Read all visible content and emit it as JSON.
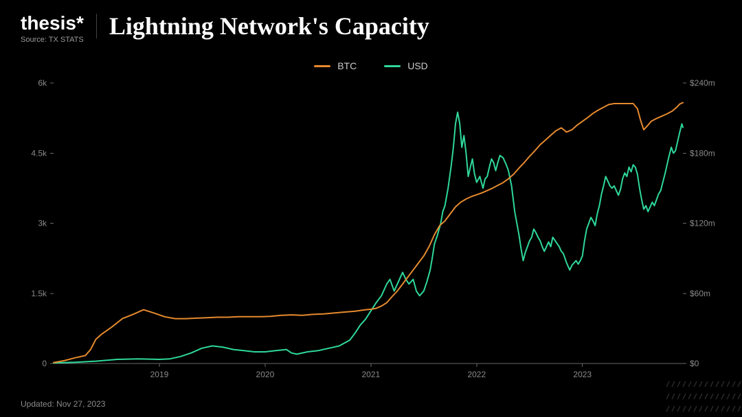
{
  "brand": {
    "logo_text": "thesis",
    "logo_star": "*",
    "source_label": "Source: TX STATS"
  },
  "title": "Lightning Network's Capacity",
  "updated_label": "Updated: Nov 27, 2023",
  "legend": {
    "btc": {
      "label": "BTC",
      "color": "#e68a2e"
    },
    "usd": {
      "label": "USD",
      "color": "#2fd89a"
    }
  },
  "chart": {
    "type": "dual-axis-line",
    "background_color": "#000000",
    "axis_color": "#6a6a6a",
    "tick_font_color": "#8a8a8a",
    "tick_fontsize": 12,
    "line_width": 2,
    "x": {
      "min": 2018.0,
      "max": 2023.95,
      "ticks": [
        2019,
        2020,
        2021,
        2022,
        2023
      ],
      "tick_labels": [
        "2019",
        "2020",
        "2021",
        "2022",
        "2023"
      ]
    },
    "y_left": {
      "min": 0,
      "max": 6000,
      "ticks": [
        0,
        1500,
        3000,
        4500,
        6000
      ],
      "tick_labels": [
        "0",
        "1.5k",
        "3k",
        "4.5k",
        "6k"
      ]
    },
    "y_right": {
      "min": 0,
      "max": 240,
      "ticks": [
        0,
        60,
        120,
        180,
        240
      ],
      "tick_labels": [
        "$0",
        "$60m",
        "$120m",
        "$180m",
        "$240m"
      ]
    },
    "series": {
      "btc": {
        "axis": "left",
        "color": "#e68a2e",
        "points": [
          [
            2018.0,
            20
          ],
          [
            2018.1,
            60
          ],
          [
            2018.2,
            120
          ],
          [
            2018.3,
            170
          ],
          [
            2018.35,
            300
          ],
          [
            2018.4,
            520
          ],
          [
            2018.45,
            620
          ],
          [
            2018.55,
            780
          ],
          [
            2018.65,
            960
          ],
          [
            2018.75,
            1050
          ],
          [
            2018.85,
            1150
          ],
          [
            2018.95,
            1080
          ],
          [
            2019.05,
            1000
          ],
          [
            2019.15,
            960
          ],
          [
            2019.25,
            960
          ],
          [
            2019.35,
            970
          ],
          [
            2019.45,
            980
          ],
          [
            2019.55,
            990
          ],
          [
            2019.65,
            990
          ],
          [
            2019.75,
            1000
          ],
          [
            2019.85,
            1000
          ],
          [
            2019.95,
            1000
          ],
          [
            2020.05,
            1010
          ],
          [
            2020.15,
            1030
          ],
          [
            2020.25,
            1040
          ],
          [
            2020.35,
            1030
          ],
          [
            2020.45,
            1050
          ],
          [
            2020.55,
            1060
          ],
          [
            2020.65,
            1080
          ],
          [
            2020.75,
            1100
          ],
          [
            2020.85,
            1120
          ],
          [
            2020.95,
            1150
          ],
          [
            2021.0,
            1160
          ],
          [
            2021.05,
            1180
          ],
          [
            2021.1,
            1230
          ],
          [
            2021.15,
            1300
          ],
          [
            2021.2,
            1430
          ],
          [
            2021.25,
            1550
          ],
          [
            2021.3,
            1700
          ],
          [
            2021.35,
            1850
          ],
          [
            2021.4,
            2000
          ],
          [
            2021.45,
            2150
          ],
          [
            2021.5,
            2300
          ],
          [
            2021.55,
            2500
          ],
          [
            2021.6,
            2750
          ],
          [
            2021.65,
            2950
          ],
          [
            2021.7,
            3050
          ],
          [
            2021.75,
            3200
          ],
          [
            2021.8,
            3350
          ],
          [
            2021.85,
            3450
          ],
          [
            2021.9,
            3520
          ],
          [
            2021.95,
            3570
          ],
          [
            2022.0,
            3610
          ],
          [
            2022.05,
            3650
          ],
          [
            2022.1,
            3700
          ],
          [
            2022.15,
            3750
          ],
          [
            2022.2,
            3810
          ],
          [
            2022.25,
            3870
          ],
          [
            2022.3,
            3950
          ],
          [
            2022.35,
            4050
          ],
          [
            2022.4,
            4180
          ],
          [
            2022.45,
            4300
          ],
          [
            2022.5,
            4430
          ],
          [
            2022.55,
            4550
          ],
          [
            2022.6,
            4680
          ],
          [
            2022.65,
            4780
          ],
          [
            2022.7,
            4880
          ],
          [
            2022.75,
            4980
          ],
          [
            2022.8,
            5040
          ],
          [
            2022.85,
            4950
          ],
          [
            2022.9,
            5000
          ],
          [
            2022.95,
            5100
          ],
          [
            2023.0,
            5180
          ],
          [
            2023.05,
            5260
          ],
          [
            2023.1,
            5350
          ],
          [
            2023.15,
            5420
          ],
          [
            2023.2,
            5480
          ],
          [
            2023.25,
            5540
          ],
          [
            2023.3,
            5560
          ],
          [
            2023.35,
            5560
          ],
          [
            2023.4,
            5560
          ],
          [
            2023.45,
            5560
          ],
          [
            2023.48,
            5560
          ],
          [
            2023.52,
            5450
          ],
          [
            2023.55,
            5200
          ],
          [
            2023.58,
            5000
          ],
          [
            2023.62,
            5100
          ],
          [
            2023.65,
            5180
          ],
          [
            2023.7,
            5240
          ],
          [
            2023.75,
            5290
          ],
          [
            2023.8,
            5340
          ],
          [
            2023.85,
            5400
          ],
          [
            2023.9,
            5500
          ],
          [
            2023.92,
            5550
          ],
          [
            2023.95,
            5580
          ]
        ]
      },
      "usd": {
        "axis": "right",
        "color": "#2fd89a",
        "points": [
          [
            2018.0,
            0.5
          ],
          [
            2018.2,
            1
          ],
          [
            2018.4,
            2
          ],
          [
            2018.6,
            3.5
          ],
          [
            2018.8,
            4
          ],
          [
            2019.0,
            3.5
          ],
          [
            2019.1,
            4
          ],
          [
            2019.2,
            6
          ],
          [
            2019.3,
            9
          ],
          [
            2019.4,
            13
          ],
          [
            2019.5,
            15
          ],
          [
            2019.6,
            14
          ],
          [
            2019.7,
            12
          ],
          [
            2019.8,
            11
          ],
          [
            2019.9,
            10
          ],
          [
            2020.0,
            10
          ],
          [
            2020.1,
            11
          ],
          [
            2020.2,
            12
          ],
          [
            2020.25,
            9
          ],
          [
            2020.3,
            8
          ],
          [
            2020.4,
            10
          ],
          [
            2020.5,
            11
          ],
          [
            2020.6,
            13
          ],
          [
            2020.7,
            15
          ],
          [
            2020.8,
            20
          ],
          [
            2020.85,
            26
          ],
          [
            2020.9,
            33
          ],
          [
            2020.95,
            38
          ],
          [
            2021.0,
            45
          ],
          [
            2021.05,
            52
          ],
          [
            2021.1,
            58
          ],
          [
            2021.15,
            68
          ],
          [
            2021.18,
            72
          ],
          [
            2021.22,
            62
          ],
          [
            2021.26,
            70
          ],
          [
            2021.3,
            78
          ],
          [
            2021.33,
            72
          ],
          [
            2021.36,
            68
          ],
          [
            2021.4,
            72
          ],
          [
            2021.43,
            62
          ],
          [
            2021.46,
            58
          ],
          [
            2021.5,
            62
          ],
          [
            2021.53,
            70
          ],
          [
            2021.56,
            80
          ],
          [
            2021.58,
            90
          ],
          [
            2021.6,
            102
          ],
          [
            2021.63,
            110
          ],
          [
            2021.66,
            120
          ],
          [
            2021.68,
            130
          ],
          [
            2021.7,
            135
          ],
          [
            2021.73,
            150
          ],
          [
            2021.76,
            170
          ],
          [
            2021.78,
            185
          ],
          [
            2021.8,
            205
          ],
          [
            2021.82,
            215
          ],
          [
            2021.84,
            205
          ],
          [
            2021.86,
            185
          ],
          [
            2021.88,
            195
          ],
          [
            2021.9,
            180
          ],
          [
            2021.92,
            160
          ],
          [
            2021.94,
            168
          ],
          [
            2021.96,
            175
          ],
          [
            2021.98,
            162
          ],
          [
            2022.0,
            155
          ],
          [
            2022.03,
            160
          ],
          [
            2022.06,
            150
          ],
          [
            2022.08,
            158
          ],
          [
            2022.1,
            160
          ],
          [
            2022.12,
            168
          ],
          [
            2022.14,
            175
          ],
          [
            2022.16,
            172
          ],
          [
            2022.18,
            165
          ],
          [
            2022.2,
            172
          ],
          [
            2022.22,
            178
          ],
          [
            2022.25,
            176
          ],
          [
            2022.28,
            170
          ],
          [
            2022.3,
            165
          ],
          [
            2022.33,
            152
          ],
          [
            2022.36,
            130
          ],
          [
            2022.38,
            120
          ],
          [
            2022.4,
            110
          ],
          [
            2022.42,
            98
          ],
          [
            2022.44,
            88
          ],
          [
            2022.46,
            95
          ],
          [
            2022.48,
            100
          ],
          [
            2022.5,
            105
          ],
          [
            2022.52,
            108
          ],
          [
            2022.54,
            115
          ],
          [
            2022.56,
            112
          ],
          [
            2022.58,
            108
          ],
          [
            2022.6,
            105
          ],
          [
            2022.62,
            100
          ],
          [
            2022.64,
            96
          ],
          [
            2022.66,
            100
          ],
          [
            2022.68,
            104
          ],
          [
            2022.7,
            100
          ],
          [
            2022.72,
            108
          ],
          [
            2022.75,
            104
          ],
          [
            2022.78,
            100
          ],
          [
            2022.8,
            96
          ],
          [
            2022.82,
            94
          ],
          [
            2022.85,
            86
          ],
          [
            2022.88,
            80
          ],
          [
            2022.9,
            84
          ],
          [
            2022.92,
            86
          ],
          [
            2022.94,
            88
          ],
          [
            2022.96,
            85
          ],
          [
            2022.98,
            88
          ],
          [
            2023.0,
            92
          ],
          [
            2023.02,
            105
          ],
          [
            2023.04,
            115
          ],
          [
            2023.06,
            120
          ],
          [
            2023.08,
            125
          ],
          [
            2023.1,
            122
          ],
          [
            2023.12,
            118
          ],
          [
            2023.14,
            128
          ],
          [
            2023.16,
            135
          ],
          [
            2023.18,
            145
          ],
          [
            2023.2,
            152
          ],
          [
            2023.22,
            160
          ],
          [
            2023.24,
            156
          ],
          [
            2023.26,
            152
          ],
          [
            2023.28,
            150
          ],
          [
            2023.3,
            152
          ],
          [
            2023.32,
            148
          ],
          [
            2023.34,
            144
          ],
          [
            2023.36,
            149
          ],
          [
            2023.38,
            158
          ],
          [
            2023.4,
            163
          ],
          [
            2023.42,
            160
          ],
          [
            2023.44,
            168
          ],
          [
            2023.46,
            164
          ],
          [
            2023.48,
            170
          ],
          [
            2023.5,
            168
          ],
          [
            2023.52,
            162
          ],
          [
            2023.54,
            150
          ],
          [
            2023.56,
            140
          ],
          [
            2023.58,
            132
          ],
          [
            2023.6,
            135
          ],
          [
            2023.62,
            130
          ],
          [
            2023.64,
            134
          ],
          [
            2023.66,
            138
          ],
          [
            2023.68,
            135
          ],
          [
            2023.7,
            140
          ],
          [
            2023.72,
            145
          ],
          [
            2023.74,
            148
          ],
          [
            2023.76,
            155
          ],
          [
            2023.78,
            162
          ],
          [
            2023.8,
            170
          ],
          [
            2023.82,
            178
          ],
          [
            2023.84,
            185
          ],
          [
            2023.86,
            180
          ],
          [
            2023.88,
            182
          ],
          [
            2023.9,
            190
          ],
          [
            2023.92,
            198
          ],
          [
            2023.94,
            205
          ],
          [
            2023.95,
            202
          ]
        ]
      }
    }
  },
  "decoration": {
    "hatch_color": "#2a2a2a"
  }
}
